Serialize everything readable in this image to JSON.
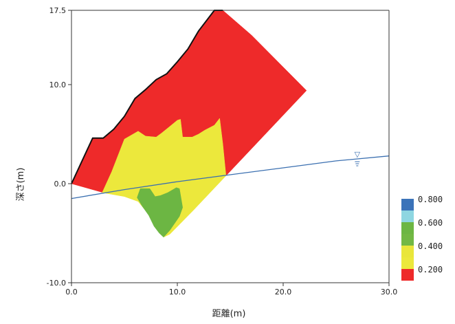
{
  "chart_data": {
    "type": "area",
    "title": "",
    "xlabel": "距離(m)",
    "ylabel": "深さ(m)",
    "xlim": [
      0,
      30
    ],
    "ylim": [
      -10,
      17.5
    ],
    "x_ticks": [
      {
        "value": 0,
        "label": "0.0"
      },
      {
        "value": 10,
        "label": "10.0"
      },
      {
        "value": 20,
        "label": "20.0"
      },
      {
        "value": 30,
        "label": "30.0"
      }
    ],
    "y_ticks": [
      {
        "value": 17.5,
        "label": "17.5"
      },
      {
        "value": 10,
        "label": "10.0"
      },
      {
        "value": 0,
        "label": "0.0"
      },
      {
        "value": -10,
        "label": "-10.0"
      }
    ],
    "legend": [
      {
        "label": "0.200",
        "color": "#ee2a2a"
      },
      {
        "label": "",
        "color": "#ece83c"
      },
      {
        "label": "0.400",
        "color": "#e9e63a"
      },
      {
        "label": "",
        "color": "#72b844"
      },
      {
        "label": "0.600",
        "color": "#6cb643"
      },
      {
        "label": "",
        "color": "#8ed6e1"
      },
      {
        "label": "0.800",
        "color": "#3b73b9"
      }
    ],
    "regions": [
      {
        "name": "red",
        "color": "#ee2a2a",
        "points": [
          [
            0,
            0
          ],
          [
            2,
            4.6
          ],
          [
            3,
            4.6
          ],
          [
            4,
            5.5
          ],
          [
            5,
            6.8
          ],
          [
            6,
            8.6
          ],
          [
            7,
            9.5
          ],
          [
            8,
            10.5
          ],
          [
            9,
            11.1
          ],
          [
            10,
            12.3
          ],
          [
            11,
            13.6
          ],
          [
            12,
            15.4
          ],
          [
            13.5,
            17.5
          ],
          [
            14.3,
            17.5
          ],
          [
            17,
            15
          ],
          [
            22.2,
            9.4
          ],
          [
            14.6,
            0.8
          ],
          [
            13.5,
            0.5
          ],
          [
            11,
            -0.1
          ],
          [
            7,
            -0.5
          ],
          [
            5,
            -0.6
          ],
          [
            3,
            -0.9
          ],
          [
            0,
            0
          ]
        ]
      },
      {
        "name": "yellow",
        "color": "#ece83c",
        "points": [
          [
            2.9,
            -0.9
          ],
          [
            3.8,
            1.2
          ],
          [
            5,
            4.5
          ],
          [
            6.3,
            5.3
          ],
          [
            7,
            4.8
          ],
          [
            8,
            4.7
          ],
          [
            8.5,
            5.1
          ],
          [
            9.2,
            5.7
          ],
          [
            10,
            6.4
          ],
          [
            10.3,
            6.5
          ],
          [
            10.5,
            4.7
          ],
          [
            11.4,
            4.7
          ],
          [
            12,
            5
          ],
          [
            12.6,
            5.4
          ],
          [
            13.5,
            5.9
          ],
          [
            14,
            6.6
          ],
          [
            14.3,
            4
          ],
          [
            14.6,
            0.8
          ],
          [
            11.5,
            -2.7
          ],
          [
            9.3,
            -5.1
          ],
          [
            8.7,
            -5.4
          ],
          [
            7.6,
            -3.5
          ],
          [
            6.3,
            -1.8
          ],
          [
            5,
            -1.3
          ],
          [
            2.9,
            -0.9
          ]
        ]
      },
      {
        "name": "green",
        "color": "#6cb643",
        "points": [
          [
            6.5,
            -0.5
          ],
          [
            7.4,
            -0.5
          ],
          [
            7.9,
            -1.3
          ],
          [
            8.4,
            -1.2
          ],
          [
            9.1,
            -0.9
          ],
          [
            9.9,
            -0.4
          ],
          [
            10.2,
            -0.5
          ],
          [
            10.5,
            -2.4
          ],
          [
            10.2,
            -3.3
          ],
          [
            9.3,
            -4.7
          ],
          [
            8.7,
            -5.4
          ],
          [
            8.3,
            -5
          ],
          [
            7.8,
            -4.3
          ],
          [
            7.3,
            -3.2
          ],
          [
            6.7,
            -2.3
          ],
          [
            6.2,
            -1.4
          ],
          [
            6.5,
            -0.5
          ]
        ]
      }
    ],
    "ground_surface": [
      [
        0,
        0
      ],
      [
        2,
        4.6
      ],
      [
        3,
        4.6
      ],
      [
        4,
        5.5
      ],
      [
        5,
        6.8
      ],
      [
        6,
        8.6
      ],
      [
        7,
        9.5
      ],
      [
        8,
        10.5
      ],
      [
        9,
        11.1
      ],
      [
        10,
        12.3
      ],
      [
        11,
        13.6
      ],
      [
        12,
        15.4
      ],
      [
        13.5,
        17.5
      ],
      [
        14.3,
        17.5
      ]
    ],
    "water_table": [
      [
        0,
        -1.5
      ],
      [
        5,
        -0.6
      ],
      [
        10,
        0.2
      ],
      [
        15,
        0.9
      ],
      [
        20,
        1.6
      ],
      [
        25,
        2.3
      ],
      [
        30,
        2.8
      ]
    ],
    "water_symbol": "▽"
  }
}
